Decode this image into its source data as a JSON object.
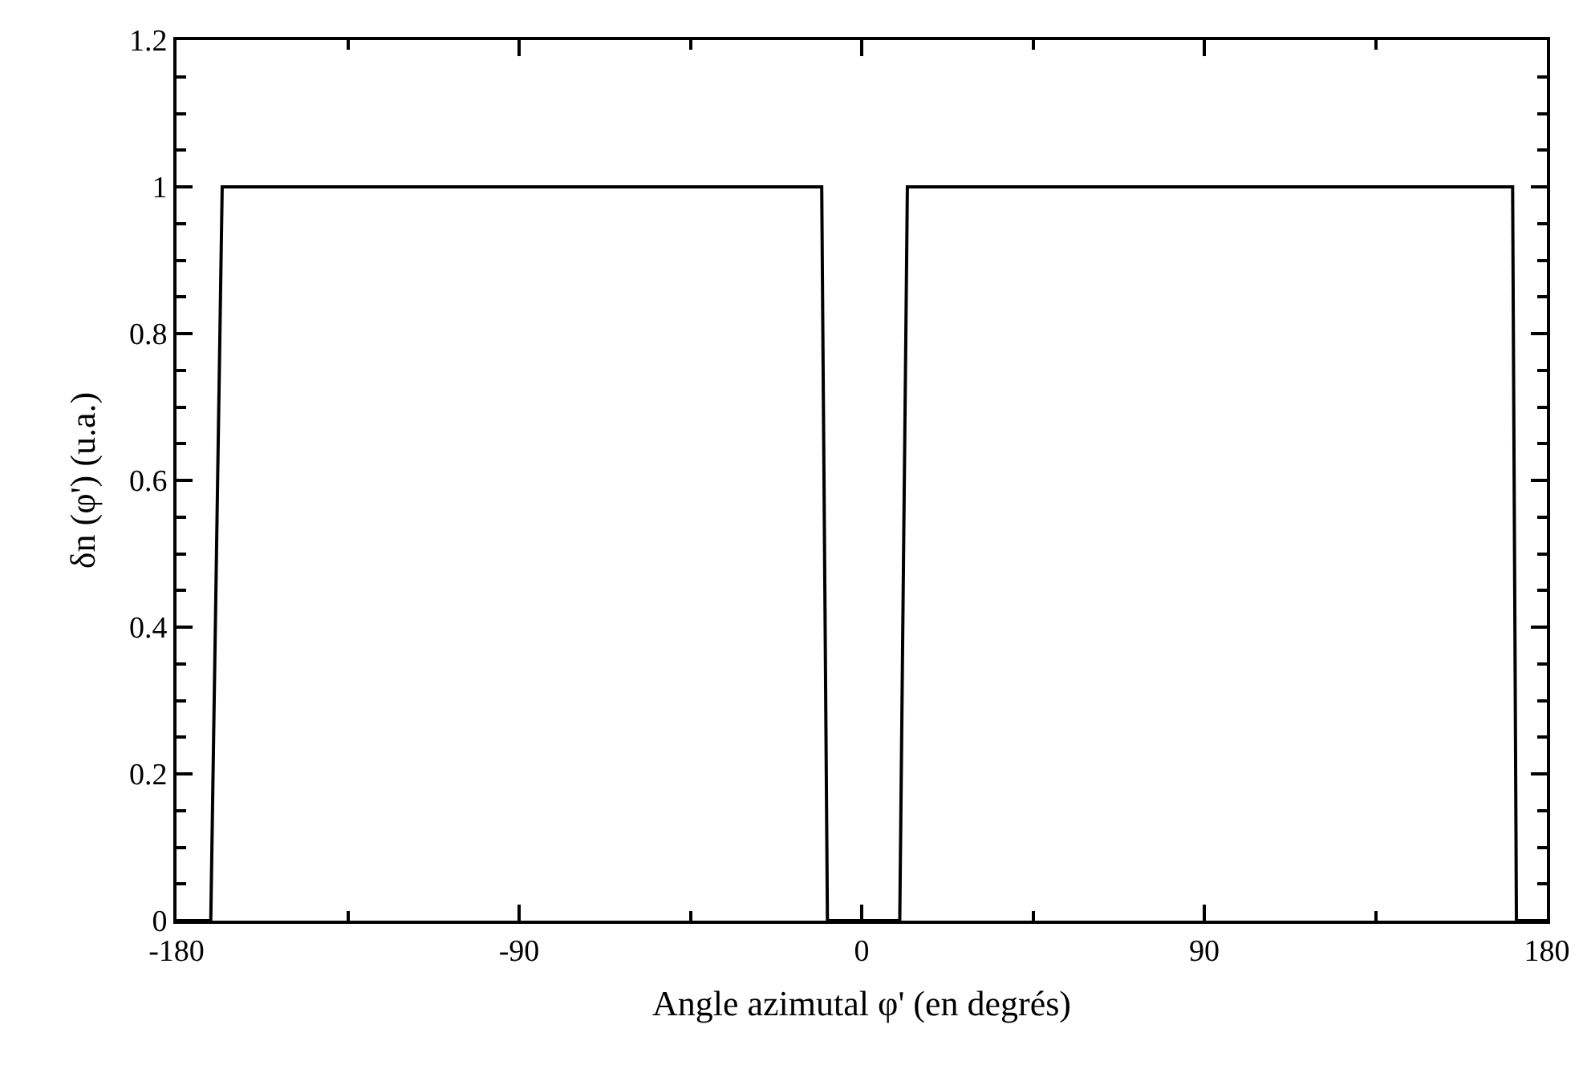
{
  "chart_data": {
    "type": "line",
    "xlabel": "Angle azimutal φ' (en degrés)",
    "ylabel": "δn (φ') (u.a.)",
    "x": [
      -180,
      -171,
      -168,
      -10.5,
      -9,
      10,
      12,
      171,
      172,
      180
    ],
    "series": [
      {
        "color": "#000000",
        "values": [
          0,
          0,
          1,
          1,
          0,
          0,
          1,
          1,
          0,
          0
        ]
      }
    ],
    "xlim": [
      -180,
      180
    ],
    "xticks": [
      -180,
      -90,
      0,
      90,
      180
    ],
    "ylim": [
      0,
      1.2
    ],
    "yticks": [
      0,
      0.2,
      0.4,
      0.6,
      0.8,
      1,
      1.2
    ],
    "marker": "none",
    "line_style": "solid"
  }
}
